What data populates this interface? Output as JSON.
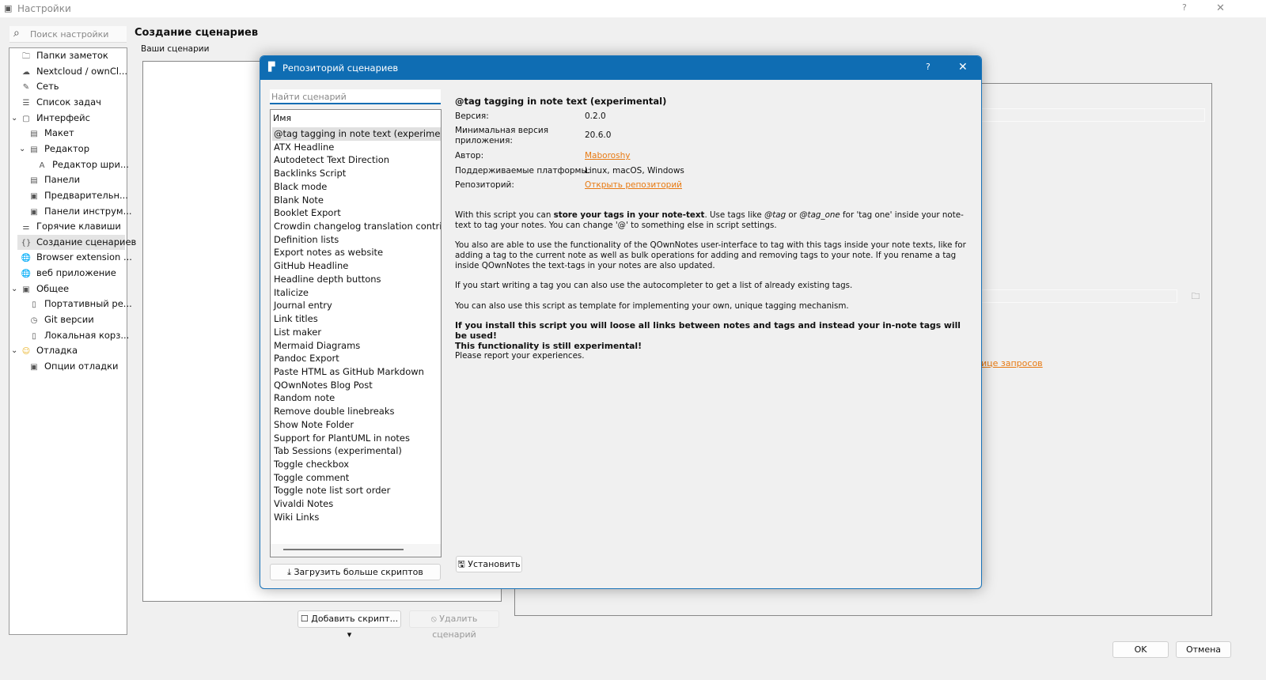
{
  "window": {
    "title": "Настройки",
    "help": "?",
    "close": "✕"
  },
  "search": {
    "placeholder": "Поиск настройки"
  },
  "sidebar": {
    "items": [
      {
        "label": "Папки заметок",
        "icon": "folder-icon",
        "level": 0
      },
      {
        "label": "Nextcloud / ownCl...",
        "icon": "cloud-icon",
        "level": 0
      },
      {
        "label": "Сеть",
        "icon": "network-icon",
        "level": 0
      },
      {
        "label": "Список задач",
        "icon": "todo-list-icon",
        "level": 0
      },
      {
        "label": "Интерфейс",
        "icon": "interface-icon",
        "level": 0,
        "expanded": true
      },
      {
        "label": "Макет",
        "icon": "layout-icon",
        "level": 1
      },
      {
        "label": "Редактор",
        "icon": "editor-icon",
        "level": 1,
        "expanded": true
      },
      {
        "label": "Редактор шри...",
        "icon": "font-icon",
        "level": 2
      },
      {
        "label": "Панели",
        "icon": "panels-icon",
        "level": 1
      },
      {
        "label": "Предварительн...",
        "icon": "preview-icon",
        "level": 1
      },
      {
        "label": "Панели инструм...",
        "icon": "toolbar-icon",
        "level": 1
      },
      {
        "label": "Горячие клавиши",
        "icon": "shortcuts-icon",
        "level": 0
      },
      {
        "label": "Создание сценариев",
        "icon": "script-icon",
        "level": 0,
        "selected": true
      },
      {
        "label": "Browser extension ...",
        "icon": "globe-icon",
        "level": 0
      },
      {
        "label": "веб приложение",
        "icon": "globe-icon",
        "level": 0
      },
      {
        "label": "Общее",
        "icon": "general-icon",
        "level": 0,
        "expanded": true
      },
      {
        "label": "Портативный ре...",
        "icon": "usb-icon",
        "level": 1
      },
      {
        "label": "Git версии",
        "icon": "clock-icon",
        "level": 1
      },
      {
        "label": "Локальная корз...",
        "icon": "trash-icon",
        "level": 1
      },
      {
        "label": "Отладка",
        "icon": "smiley-icon",
        "level": 0,
        "expanded": true
      },
      {
        "label": "Опции отладки",
        "icon": "debug-options-icon",
        "level": 1
      }
    ]
  },
  "main": {
    "title": "Создание сценариев",
    "group": "Ваши сценарии",
    "request_link": "ице запросов",
    "add_script": "Добавить скрипт...",
    "remove_script": "Удалить сценарий",
    "ok": "OK",
    "cancel": "Отмена"
  },
  "dialog": {
    "title": "Репозиторий сценариев",
    "help": "?",
    "close": "✕",
    "search_placeholder": "Найти сценарий",
    "column_header": "Имя",
    "scripts": [
      "@tag tagging in note text (experimental)",
      "ATX Headline",
      "Autodetect Text Direction",
      "Backlinks Script",
      "Black mode",
      "Blank Note",
      "Booklet Export",
      "Crowdin changelog translation contributi",
      "Definition lists",
      "Export notes as website",
      "GitHub Headline",
      "Headline depth buttons",
      "Italicize",
      "Journal entry",
      "Link titles",
      "List maker",
      "Mermaid Diagrams",
      "Pandoc Export",
      "Paste HTML as GitHub Markdown",
      "QOwnNotes Blog Post",
      "Random note",
      "Remove double linebreaks",
      "Show Note Folder",
      "Support for PlantUML in notes",
      "Tab Sessions (experimental)",
      "Toggle checkbox",
      "Toggle comment",
      "Toggle note list sort order",
      "Vivaldi Notes",
      "Wiki Links"
    ],
    "selected_index": 0,
    "load_more": "Загрузить больше скриптов",
    "install": "Установить",
    "details": {
      "name": "@tag tagging in note text (experimental)",
      "version_label": "Версия:",
      "version": "0.2.0",
      "min_version_label_1": "Минимальная версия",
      "min_version_label_2": "приложения:",
      "min_version": "20.6.0",
      "author_label": "Автор:",
      "author": "Maboroshy",
      "platforms_label": "Поддерживаемые платформы:",
      "platforms": "Linux, macOS, Windows",
      "repo_label": "Репозиторий:",
      "repo": "Открыть репозиторий",
      "p1a": "With this script you can ",
      "p1b": "store your tags in your note-text",
      "p1c": ". Use tags like ",
      "p1d": "@tag",
      "p1e": " or ",
      "p1f": "@tag_one",
      "p1g": " for 'tag one' inside your note-text to tag your notes. You can change '@' to something else in script settings.",
      "p2": "You also are able to use the functionality of the QOwnNotes user-interface to tag with this tags inside your note texts, like for adding a tag to the current note as well as bulk operations for adding and removing tags to your note. If you rename a tag inside QOwnNotes the text-tags in your notes are also updated.",
      "p3": "If you start writing a tag you can also use the autocompleter to get a list of already existing tags.",
      "p4": "You can also use this script as template for implementing your own, unique tagging mechanism.",
      "p5": "If you install this script you will loose all links between notes and tags and instead your in-note tags will be used!",
      "p6": "This functionality is still experimental!",
      "p7": "Please report your experiences."
    }
  }
}
